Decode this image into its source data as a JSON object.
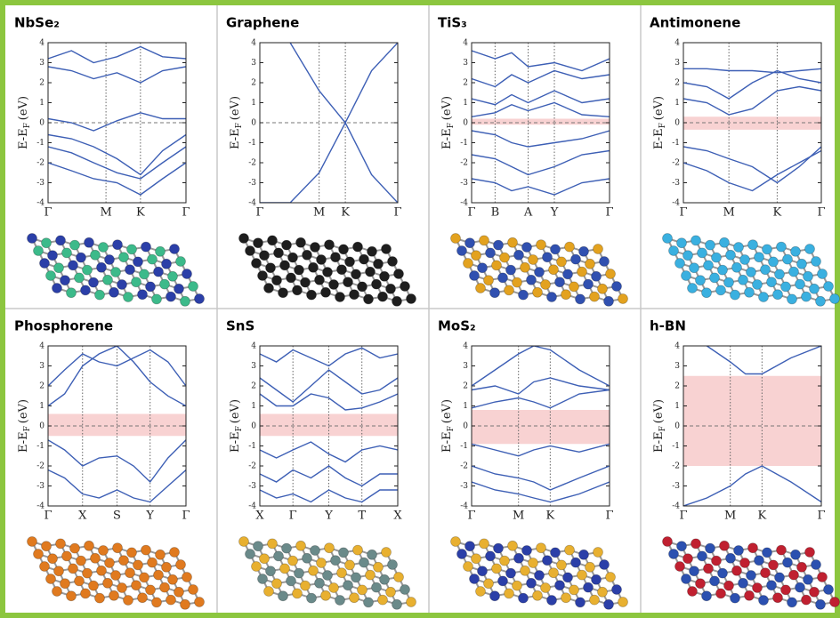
{
  "chart_data": [
    {
      "type": "band",
      "title": "NbSe₂",
      "ylabel": "E-E",
      "ylabel_sub": "F",
      "ylabel_unit": "(eV)",
      "color": "#3d5fb5",
      "ylim": [
        -4,
        4
      ],
      "yticks": [
        -4,
        -3,
        -2,
        -1,
        0,
        1,
        2,
        3,
        4
      ],
      "fermi_level": 0,
      "xlim": [
        0,
        1
      ],
      "xticks": [
        {
          "value": 0,
          "label": "Γ"
        },
        {
          "value": 0.42,
          "label": "M"
        },
        {
          "value": 0.67,
          "label": "K"
        },
        {
          "value": 1,
          "label": "Γ"
        }
      ],
      "x": [
        0,
        0.17,
        0.33,
        0.5,
        0.67,
        0.83,
        1
      ],
      "series": [
        {
          "values": [
            3.2,
            3.6,
            3.0,
            3.3,
            3.8,
            3.3,
            3.2
          ]
        },
        {
          "values": [
            2.8,
            2.6,
            2.2,
            2.5,
            2.0,
            2.6,
            2.8
          ]
        },
        {
          "values": [
            0.2,
            0.0,
            -0.4,
            0.1,
            0.5,
            0.2,
            0.2
          ]
        },
        {
          "values": [
            -0.6,
            -0.8,
            -1.2,
            -1.8,
            -2.6,
            -1.4,
            -0.6
          ]
        },
        {
          "values": [
            -1.2,
            -1.5,
            -2.0,
            -2.5,
            -2.8,
            -2.0,
            -1.2
          ]
        },
        {
          "values": [
            -2.0,
            -2.4,
            -2.8,
            -3.0,
            -3.6,
            -2.8,
            -2.0
          ]
        }
      ]
    },
    {
      "type": "band",
      "title": "Graphene",
      "ylabel": "E-E",
      "ylabel_sub": "F",
      "ylabel_unit": "(eV)",
      "color": "#3d5fb5",
      "ylim": [
        -4,
        4
      ],
      "yticks": [
        -4,
        -3,
        -2,
        -1,
        0,
        1,
        2,
        3,
        4
      ],
      "fermi_level": 0,
      "xlim": [
        0,
        1
      ],
      "xticks": [
        {
          "value": 0,
          "label": "Γ"
        },
        {
          "value": 0.43,
          "label": "M"
        },
        {
          "value": 0.62,
          "label": "K"
        },
        {
          "value": 1,
          "label": "Γ"
        }
      ],
      "x": [
        0,
        0.22,
        0.43,
        0.62,
        0.81,
        1
      ],
      "series": [
        {
          "values": [
            null,
            4,
            1.6,
            0,
            2.6,
            4
          ]
        },
        {
          "values": [
            -4,
            -4,
            -2.5,
            0,
            -2.6,
            -4
          ]
        }
      ]
    },
    {
      "type": "band",
      "title": "TiS₃",
      "ylabel": "E-E",
      "ylabel_sub": "F",
      "ylabel_unit": "(eV)",
      "color": "#3d5fb5",
      "ylim": [
        -4,
        4
      ],
      "yticks": [
        -4,
        -3,
        -2,
        -1,
        0,
        1,
        2,
        3,
        4
      ],
      "fermi_level": 0,
      "gap": [
        -0.1,
        0.2
      ],
      "gap_color": "#f8d2d2",
      "xlim": [
        0,
        1
      ],
      "xticks": [
        {
          "value": 0,
          "label": "Γ"
        },
        {
          "value": 0.17,
          "label": "B"
        },
        {
          "value": 0.41,
          "label": "A"
        },
        {
          "value": 0.6,
          "label": "Y"
        },
        {
          "value": 1,
          "label": "Γ"
        }
      ],
      "x": [
        0,
        0.17,
        0.29,
        0.41,
        0.6,
        0.8,
        1
      ],
      "series": [
        {
          "values": [
            3.6,
            3.2,
            3.5,
            2.8,
            3.0,
            2.6,
            3.2
          ]
        },
        {
          "values": [
            2.2,
            1.8,
            2.4,
            2.0,
            2.6,
            2.2,
            2.4
          ]
        },
        {
          "values": [
            1.2,
            0.9,
            1.4,
            1.0,
            1.6,
            1.0,
            1.2
          ]
        },
        {
          "values": [
            0.3,
            0.5,
            0.9,
            0.6,
            1.0,
            0.4,
            0.3
          ]
        },
        {
          "values": [
            -0.4,
            -0.6,
            -1.0,
            -1.2,
            -1.0,
            -0.8,
            -0.4
          ]
        },
        {
          "values": [
            -1.6,
            -1.8,
            -2.2,
            -2.6,
            -2.2,
            -1.6,
            -1.4
          ]
        },
        {
          "values": [
            -2.8,
            -3.0,
            -3.4,
            -3.2,
            -3.6,
            -3.0,
            -2.8
          ]
        }
      ]
    },
    {
      "type": "band",
      "title": "Antimonene",
      "ylabel": "E-E",
      "ylabel_sub": "F",
      "ylabel_unit": "(eV)",
      "color": "#3d5fb5",
      "ylim": [
        -4,
        4
      ],
      "yticks": [
        -4,
        -3,
        -2,
        -1,
        0,
        1,
        2,
        3,
        4
      ],
      "fermi_level": 0,
      "gap": [
        -0.35,
        0.3
      ],
      "gap_color": "#f8d2d2",
      "xlim": [
        0,
        1
      ],
      "xticks": [
        {
          "value": 0,
          "label": "Γ"
        },
        {
          "value": 0.33,
          "label": "M"
        },
        {
          "value": 0.68,
          "label": "K"
        },
        {
          "value": 1,
          "label": "Γ"
        }
      ],
      "x": [
        0,
        0.17,
        0.33,
        0.5,
        0.68,
        0.84,
        1
      ],
      "series": [
        {
          "values": [
            2.7,
            2.7,
            2.6,
            2.6,
            2.5,
            2.6,
            2.7
          ]
        },
        {
          "values": [
            2.0,
            1.8,
            1.2,
            2.0,
            2.6,
            2.2,
            2.0
          ]
        },
        {
          "values": [
            1.2,
            1.0,
            0.4,
            0.7,
            1.6,
            1.8,
            1.6
          ]
        },
        {
          "values": [
            -1.2,
            -1.4,
            -1.8,
            -2.2,
            -3.0,
            -2.2,
            -1.2
          ]
        },
        {
          "values": [
            -2.0,
            -2.4,
            -3.0,
            -3.4,
            -2.6,
            -2.0,
            -1.4
          ]
        }
      ]
    },
    {
      "type": "band",
      "title": "Phosphorene",
      "ylabel": "E-E",
      "ylabel_sub": "F",
      "ylabel_unit": "(eV)",
      "color": "#3d5fb5",
      "ylim": [
        -4,
        4
      ],
      "yticks": [
        -4,
        -3,
        -2,
        -1,
        0,
        1,
        2,
        3,
        4
      ],
      "fermi_level": 0,
      "gap": [
        -0.5,
        0.6
      ],
      "gap_color": "#f8d2d2",
      "xlim": [
        0,
        1
      ],
      "xticks": [
        {
          "value": 0,
          "label": "Γ"
        },
        {
          "value": 0.25,
          "label": "X"
        },
        {
          "value": 0.5,
          "label": "S"
        },
        {
          "value": 0.74,
          "label": "Y"
        },
        {
          "value": 1,
          "label": "Γ"
        }
      ],
      "x": [
        0,
        0.12,
        0.25,
        0.37,
        0.5,
        0.62,
        0.74,
        0.87,
        1
      ],
      "series": [
        {
          "values": [
            1.0,
            1.6,
            3.0,
            3.6,
            4,
            3.2,
            2.2,
            1.5,
            1.0
          ]
        },
        {
          "values": [
            2.0,
            2.8,
            3.6,
            3.2,
            3,
            3.4,
            3.8,
            3.2,
            2.0
          ]
        },
        {
          "values": [
            -0.7,
            -1.2,
            -2.0,
            -1.6,
            -1.5,
            -2.0,
            -2.8,
            -1.6,
            -0.7
          ]
        },
        {
          "values": [
            -2.2,
            -2.6,
            -3.4,
            -3.6,
            -3.2,
            -3.6,
            -3.8,
            -3.0,
            -2.2
          ]
        }
      ]
    },
    {
      "type": "band",
      "title": "SnS",
      "ylabel": "E-E",
      "ylabel_sub": "F",
      "ylabel_unit": "(eV)",
      "color": "#3d5fb5",
      "ylim": [
        -4,
        4
      ],
      "yticks": [
        -4,
        -3,
        -2,
        -1,
        0,
        1,
        2,
        3,
        4
      ],
      "fermi_level": 0,
      "gap": [
        -0.5,
        0.6
      ],
      "gap_color": "#f8d2d2",
      "xlim": [
        0,
        1
      ],
      "xticks": [
        {
          "value": 0,
          "label": "X"
        },
        {
          "value": 0.24,
          "label": "Γ"
        },
        {
          "value": 0.5,
          "label": "Y"
        },
        {
          "value": 0.74,
          "label": "T"
        },
        {
          "value": 1,
          "label": "X"
        }
      ],
      "x": [
        0,
        0.12,
        0.24,
        0.37,
        0.5,
        0.62,
        0.74,
        0.87,
        1
      ],
      "series": [
        {
          "values": [
            2.4,
            1.8,
            1.2,
            2.0,
            2.8,
            2.2,
            1.6,
            1.8,
            2.4
          ]
        },
        {
          "values": [
            3.6,
            3.2,
            3.8,
            3.4,
            3.0,
            3.6,
            3.9,
            3.4,
            3.6
          ]
        },
        {
          "values": [
            1.6,
            1.0,
            1.0,
            1.6,
            1.4,
            0.8,
            0.9,
            1.2,
            1.6
          ]
        },
        {
          "values": [
            -1.2,
            -1.6,
            -1.2,
            -0.8,
            -1.4,
            -1.8,
            -1.2,
            -1.0,
            -1.2
          ]
        },
        {
          "values": [
            -2.4,
            -2.8,
            -2.2,
            -2.6,
            -2.0,
            -2.6,
            -3.0,
            -2.4,
            -2.4
          ]
        },
        {
          "values": [
            -3.2,
            -3.6,
            -3.4,
            -3.8,
            -3.2,
            -3.6,
            -3.8,
            -3.2,
            -3.2
          ]
        }
      ]
    },
    {
      "type": "band",
      "title": "MoS₂",
      "ylabel": "E-E",
      "ylabel_sub": "F",
      "ylabel_unit": "(eV)",
      "color": "#3d5fb5",
      "ylim": [
        -4,
        4
      ],
      "yticks": [
        -4,
        -3,
        -2,
        -1,
        0,
        1,
        2,
        3,
        4
      ],
      "fermi_level": 0,
      "gap": [
        -0.9,
        0.8
      ],
      "gap_color": "#f8d2d2",
      "xlim": [
        0,
        1
      ],
      "xticks": [
        {
          "value": 0,
          "label": "Γ"
        },
        {
          "value": 0.34,
          "label": "M"
        },
        {
          "value": 0.57,
          "label": "K"
        },
        {
          "value": 1,
          "label": "Γ"
        }
      ],
      "x": [
        0,
        0.17,
        0.34,
        0.45,
        0.57,
        0.78,
        1
      ],
      "series": [
        {
          "values": [
            2.0,
            2.8,
            3.6,
            4.0,
            3.8,
            2.8,
            2.0
          ]
        },
        {
          "values": [
            1.8,
            2.0,
            1.6,
            2.2,
            2.4,
            2.0,
            1.8
          ]
        },
        {
          "values": [
            0.9,
            1.2,
            1.4,
            1.2,
            0.9,
            1.6,
            1.8
          ]
        },
        {
          "values": [
            -0.9,
            -1.2,
            -1.5,
            -1.2,
            -1.0,
            -1.3,
            -0.9
          ]
        },
        {
          "values": [
            -2.0,
            -2.4,
            -2.6,
            -2.8,
            -3.2,
            -2.6,
            -2.0
          ]
        },
        {
          "values": [
            -2.8,
            -3.2,
            -3.4,
            -3.6,
            -3.8,
            -3.4,
            -2.8
          ]
        }
      ]
    },
    {
      "type": "band",
      "title": "h-BN",
      "ylabel": "E-E",
      "ylabel_sub": "F",
      "ylabel_unit": "(eV)",
      "color": "#3d5fb5",
      "ylim": [
        -4,
        4
      ],
      "yticks": [
        -4,
        -3,
        -2,
        -1,
        0,
        1,
        2,
        3,
        4
      ],
      "fermi_level": 0,
      "gap": [
        -2.0,
        2.5
      ],
      "gap_color": "#f8d2d2",
      "xlim": [
        0,
        1
      ],
      "xticks": [
        {
          "value": 0,
          "label": "Γ"
        },
        {
          "value": 0.34,
          "label": "M"
        },
        {
          "value": 0.57,
          "label": "K"
        },
        {
          "value": 1,
          "label": "Γ"
        }
      ],
      "x": [
        0,
        0.17,
        0.34,
        0.45,
        0.57,
        0.78,
        1
      ],
      "series": [
        {
          "values": [
            null,
            4,
            3.2,
            2.6,
            2.6,
            3.4,
            4
          ]
        },
        {
          "values": [
            -4,
            -3.6,
            -3.0,
            -2.4,
            -2.0,
            -2.8,
            -3.8
          ]
        }
      ]
    }
  ]
}
